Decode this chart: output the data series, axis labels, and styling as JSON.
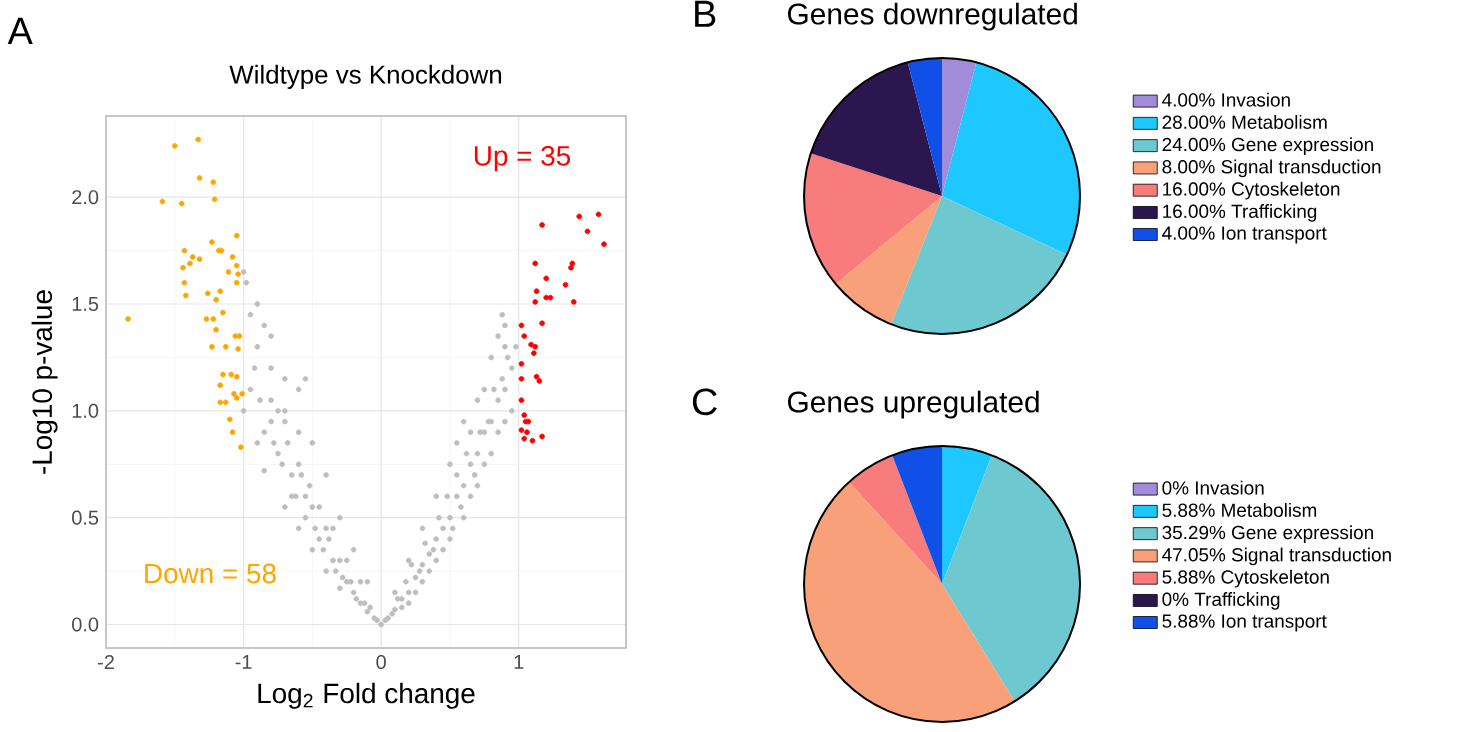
{
  "chart_data": [
    {
      "type": "scatter",
      "title": "Wildtype vs Knockdown",
      "xlabel": "Log$_{2}$ Fold change",
      "ylabel": "-Log10 p-value",
      "annotations": [
        "A",
        "Up = 35",
        "Down = 58"
      ],
      "xlim": [
        -2,
        1.78
      ],
      "ylim": [
        -0.11,
        2.38
      ],
      "xticks": [
        -2,
        -1,
        0,
        1
      ],
      "yticks": [
        {
          "value": 0,
          "label": "0.0"
        },
        0.5,
        {
          "value": 1,
          "label": "1.0"
        },
        1.5,
        {
          "value": 2,
          "label": "2.0"
        }
      ],
      "grid": true,
      "marker": "circle",
      "series": [
        {
          "color": "#bebebe",
          "x": [
            -1.0,
            -0.98,
            -0.9,
            -0.85,
            -0.95,
            -0.8,
            -0.8,
            -0.7,
            -0.75,
            -0.6,
            -0.65,
            -0.55,
            -0.5,
            -0.45,
            -0.4,
            -0.35,
            -0.3,
            -0.25,
            -0.2,
            -0.15,
            -0.1,
            -0.05,
            0,
            -1.0,
            -0.9,
            -0.85,
            -0.7,
            -0.6,
            -0.5,
            -0.4,
            -0.3,
            -0.9,
            -0.8,
            -0.7,
            -0.6,
            -0.55,
            -0.5,
            -0.4,
            -0.3,
            -0.2,
            -0.1,
            0.05,
            0.1,
            0.15,
            0.2,
            0.25,
            0.3,
            0.35,
            0.4,
            0.45,
            0.5,
            0.55,
            0.6,
            0.65,
            0.7,
            0.75,
            0.8,
            0.85,
            0.9,
            0.95,
            0.98,
            0.85,
            0.9,
            0.88,
            0.9,
            0.8,
            0.7,
            0.6,
            0.5,
            0.4,
            0.3,
            0.2,
            0.6,
            0.5,
            0.4,
            0.3,
            0.2,
            0.1,
            0.7,
            0.75,
            0.8,
            0.65,
            0.55,
            -0.95,
            -0.92,
            -0.88,
            -0.85,
            -0.8,
            -0.78,
            -0.75,
            -0.72,
            -0.68,
            -0.65,
            -0.62,
            -0.58,
            -0.55,
            -0.52,
            -0.48,
            -0.45,
            -0.42,
            -0.38,
            -0.35,
            -0.33,
            -0.28,
            -0.25,
            -0.22,
            -0.18,
            -0.15,
            -0.12,
            -0.08,
            -0.03,
            -0.6,
            -0.7,
            0.92,
            0.88,
            0.85,
            0.82,
            0.78,
            0.75,
            0.72,
            0.68,
            0.65,
            0.62,
            0.58,
            0.55,
            0.52,
            0.48,
            0.45,
            0.42,
            0.38,
            0.35,
            0.32,
            0.28,
            0.25,
            0.22,
            0.18,
            0.15,
            0.12,
            0.08,
            0.03,
            0.9,
            0.95
          ],
          "values": [
            1.65,
            1.6,
            1.3,
            1.4,
            1.1,
            1.2,
            0.95,
            0.95,
            0.8,
            0.75,
            0.6,
            0.6,
            0.55,
            0.4,
            0.45,
            0.3,
            0.3,
            0.2,
            0.15,
            0.1,
            0.06,
            0.03,
            0,
            1.0,
            0.85,
            0.72,
            0.55,
            0.45,
            0.35,
            0.25,
            0.17,
            1.5,
            1.35,
            1.15,
            1.1,
            1.15,
            0.85,
            0.7,
            0.5,
            0.35,
            0.2,
            0.03,
            0.07,
            0.12,
            0.15,
            0.22,
            0.28,
            0.33,
            0.4,
            0.45,
            0.5,
            0.6,
            0.65,
            0.75,
            0.8,
            0.9,
            0.95,
            1.05,
            1.1,
            1.2,
            1.3,
            1.35,
            1.4,
            1.45,
            0.95,
            0.8,
            0.65,
            0.5,
            0.4,
            0.3,
            0.2,
            0.1,
            0.95,
            0.75,
            0.6,
            0.45,
            0.3,
            0.15,
            1.05,
            1.1,
            1.25,
            0.9,
            0.85,
            1.45,
            1.2,
            1.05,
            0.9,
            1.05,
            0.85,
            1.0,
            0.75,
            0.85,
            0.7,
            0.6,
            0.7,
            0.5,
            0.65,
            0.45,
            0.55,
            0.35,
            0.4,
            0.45,
            0.25,
            0.22,
            0.3,
            0.2,
            0.12,
            0.2,
            0.1,
            0.08,
            0.02,
            0.9,
            1.0,
            1.25,
            1.15,
            0.9,
            1.1,
            0.95,
            0.75,
            0.9,
            0.7,
            0.6,
            0.8,
            0.55,
            0.7,
            0.45,
            0.6,
            0.35,
            0.5,
            0.35,
            0.25,
            0.38,
            0.25,
            0.15,
            0.28,
            0.2,
            0.08,
            0.12,
            0.05,
            0.02,
            1.3,
            1.0
          ]
        },
        {
          "color": "#ffa500",
          "x": [
            -1.5,
            -1.33,
            -1.32,
            -1.22,
            -1.59,
            -1.45,
            -1.21,
            -1.84,
            -1.05,
            -1.43,
            -1.37,
            -1.32,
            -1.39,
            -1.44,
            -1.23,
            -1.18,
            -1.16,
            -1.08,
            -1.05,
            -1.11,
            -1.04,
            -1.43,
            -1.42,
            -1.17,
            -1.2,
            -1.27,
            -1.22,
            -1.15,
            -1.2,
            -1.23,
            -1.13,
            -1.06,
            -1.03,
            -1.04,
            -1.15,
            -1.09,
            -1.05,
            -1.17,
            -1.13,
            -1.05,
            -1.01,
            -1.1,
            -1.08,
            -1.02,
            -1.07,
            -1.17,
            -1.26,
            -1.05
          ],
          "values": [
            2.24,
            2.27,
            2.09,
            2.07,
            1.98,
            1.97,
            1.99,
            1.43,
            1.82,
            1.75,
            1.72,
            1.71,
            1.69,
            1.67,
            1.79,
            1.75,
            1.75,
            1.72,
            1.68,
            1.65,
            1.64,
            1.6,
            1.54,
            1.56,
            1.52,
            1.43,
            1.43,
            1.46,
            1.38,
            1.3,
            1.3,
            1.35,
            1.35,
            1.29,
            1.17,
            1.17,
            1.16,
            1.12,
            1.04,
            1.06,
            1.08,
            0.96,
            0.9,
            0.83,
            1.08,
            1.04,
            1.55,
            1.6
          ]
        },
        {
          "color": "#ff0000",
          "x": [
            1.02,
            1.04,
            1.09,
            1.12,
            1.02,
            1.11,
            1.02,
            1.13,
            1.15,
            1.02,
            1.04,
            1.05,
            1.07,
            1.02,
            1.06,
            1.1,
            1.17,
            1.04,
            1.12,
            1.17,
            1.13,
            1.2,
            1.17,
            1.12,
            1.2,
            1.23,
            1.44,
            1.58,
            1.5,
            1.62,
            1.39,
            1.38,
            1.4,
            1.34
          ],
          "values": [
            1.4,
            1.35,
            1.31,
            1.3,
            1.22,
            1.27,
            1.15,
            1.16,
            1.14,
            1.05,
            0.98,
            0.95,
            0.95,
            0.91,
            0.9,
            0.86,
            0.88,
            0.87,
            1.69,
            1.87,
            1.56,
            1.62,
            1.41,
            1.51,
            1.53,
            1.53,
            1.91,
            1.92,
            1.84,
            1.78,
            1.69,
            1.67,
            1.51,
            1.59
          ]
        }
      ]
    },
    {
      "type": "pie",
      "title": "Genes downregulated",
      "annotations": [
        "B"
      ],
      "legend": "right",
      "categories": [
        "4.00%  Invasion",
        "28.00%  Metabolism",
        "24.00%  Gene expression",
        "8.00%  Signal transduction",
        "16.00%  Cytoskeleton",
        "16.00%  Trafficking",
        "4.00%  Ion transport"
      ],
      "values": [
        4,
        28,
        24,
        8,
        16,
        16,
        4
      ],
      "colors": [
        "#a08cd8",
        "#1ec8ff",
        "#6ec8d0",
        "#f8a07a",
        "#f87c7c",
        "#2c1650",
        "#1050e8"
      ]
    },
    {
      "type": "pie",
      "title": "Genes upregulated",
      "annotations": [
        "C"
      ],
      "legend": "right",
      "categories": [
        "0%  Invasion",
        "5.88%  Metabolism",
        "35.29%  Gene expression",
        "47.05%  Signal transduction",
        "5.88%  Cytoskeleton",
        "0%  Trafficking",
        "5.88%  Ion transport"
      ],
      "values": [
        0,
        5.88,
        35.29,
        47.05,
        5.88,
        0,
        5.88
      ],
      "colors": [
        "#a08cd8",
        "#1ec8ff",
        "#6ec8d0",
        "#f8a07a",
        "#f87c7c",
        "#2c1650",
        "#1050e8"
      ]
    }
  ]
}
